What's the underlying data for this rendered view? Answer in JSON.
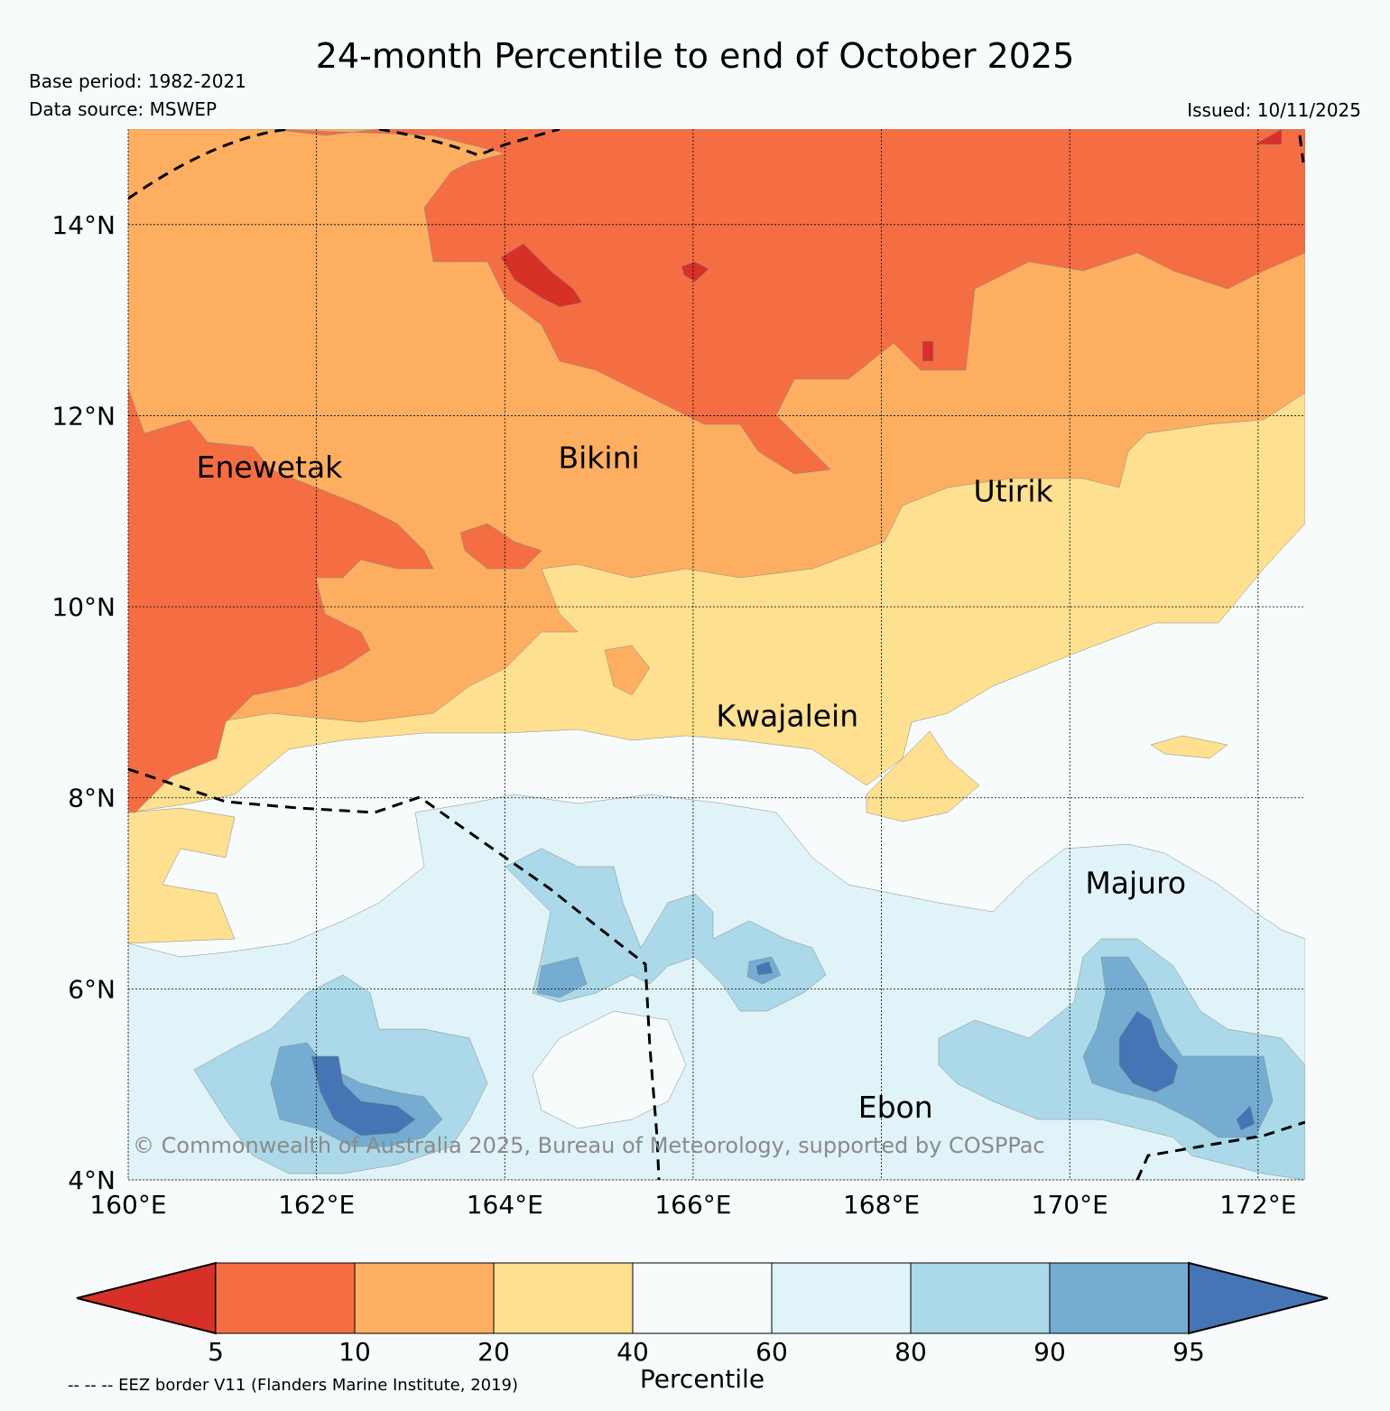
{
  "title": "24-month Percentile to end of October 2025",
  "base_period": "Base period: 1982-2021",
  "data_source": "Data source: MSWEP",
  "issued": "Issued: 10/11/2025",
  "map": {
    "lat_range": [
      4,
      15
    ],
    "lon_range": [
      160,
      172.5
    ],
    "lat_labels": [
      "14°N",
      "12°N",
      "10°N",
      "8°N",
      "6°N",
      "4°N"
    ],
    "lat_values": [
      14,
      12,
      10,
      8,
      6,
      4
    ],
    "lon_labels": [
      "160°E",
      "162°E",
      "164°E",
      "166°E",
      "168°E",
      "170°E",
      "172°E"
    ],
    "lon_values": [
      160,
      162,
      164,
      166,
      168,
      170,
      172
    ],
    "places": [
      {
        "name": "Enewetak",
        "lon": 161.5,
        "lat": 11.35
      },
      {
        "name": "Bikini",
        "lon": 165.0,
        "lat": 11.45
      },
      {
        "name": "Utirik",
        "lon": 169.4,
        "lat": 11.1
      },
      {
        "name": "Kwajalein",
        "lon": 167.0,
        "lat": 8.75
      },
      {
        "name": "Majuro",
        "lon": 170.7,
        "lat": 7.0
      },
      {
        "name": "Ebon",
        "lon": 168.15,
        "lat": 4.65
      }
    ],
    "copyright": "© Commonwealth of Australia 2025, Bureau of Meteorology, supported by COSPPac"
  },
  "colorbar": {
    "label": "Percentile",
    "ticks": [
      "5",
      "10",
      "20",
      "40",
      "60",
      "80",
      "90",
      "95"
    ],
    "colors": [
      "#d73027",
      "#f46d43",
      "#fdae61",
      "#fee090",
      "#f7fbfc",
      "#e0f3f8",
      "#abd9e9",
      "#74add1",
      "#4575b4"
    ]
  },
  "eez_note": "-- -- -- EEZ border V11 (Flanders Marine Institute, 2019)"
}
